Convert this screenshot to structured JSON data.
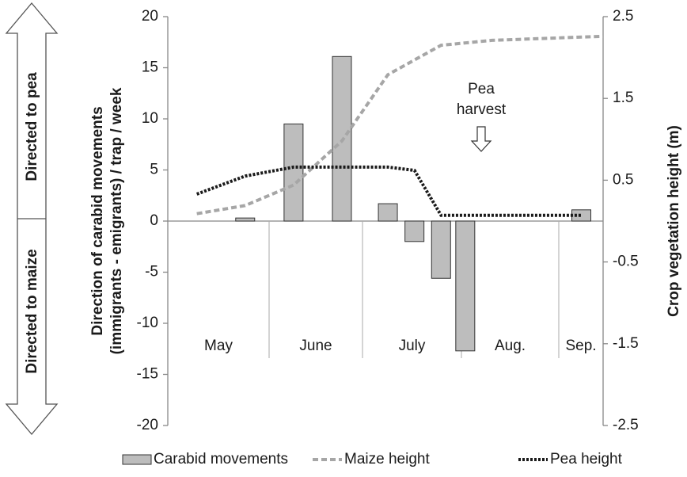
{
  "chart_data": {
    "type": "bar_line",
    "ylabel": [
      "Direction of carabid movements",
      "(immigrants - emigrants)  / trap / week"
    ],
    "y2label": "Crop vegetation height (m)",
    "ylim": [
      -20,
      20
    ],
    "yticks": [
      -20,
      -15,
      -10,
      -5,
      0,
      5,
      10,
      15,
      20
    ],
    "y2lim": [
      -2.5,
      2.5
    ],
    "y2ticks": [
      -2.5,
      -1.5,
      -0.5,
      0.5,
      1.5,
      2.5
    ],
    "xlim": [
      0,
      18
    ],
    "month_labels": [
      "May",
      "June",
      "July",
      "Aug.",
      "Sep."
    ],
    "annotation": [
      "Pea",
      "harvest"
    ],
    "direction_labels": [
      "Directed to pea",
      "Directed to maize"
    ],
    "series": [
      {
        "name": "Carabid movements",
        "type": "bar",
        "color": "#bdbdbd",
        "x": [
          3.2,
          5.2,
          7.2,
          9.1,
          10.2,
          11.3,
          12.3,
          17.1
        ],
        "values": [
          0.3,
          9.5,
          16.1,
          1.7,
          -2,
          -5.6,
          -12.7,
          1.1
        ]
      },
      {
        "name": "Maize height",
        "type": "line",
        "axis": "y2",
        "color": "#a6a6a6",
        "dash": "dashed",
        "x": [
          1.2,
          3.2,
          5.2,
          7.2,
          9.1,
          11.3,
          13.4,
          18
        ],
        "values": [
          0.09,
          0.19,
          0.44,
          0.98,
          1.79,
          2.15,
          2.21,
          2.26
        ]
      },
      {
        "name": "Pea height",
        "type": "line",
        "axis": "y2",
        "color": "#1a1a1a",
        "dash": "dotted",
        "x": [
          1.2,
          3.2,
          5.2,
          7.2,
          9.1,
          10.2,
          11.3,
          13.4,
          15.4,
          17.1
        ],
        "values": [
          0.33,
          0.55,
          0.66,
          0.66,
          0.66,
          0.62,
          0.07,
          0.07,
          0.07,
          0.07
        ]
      }
    ]
  }
}
